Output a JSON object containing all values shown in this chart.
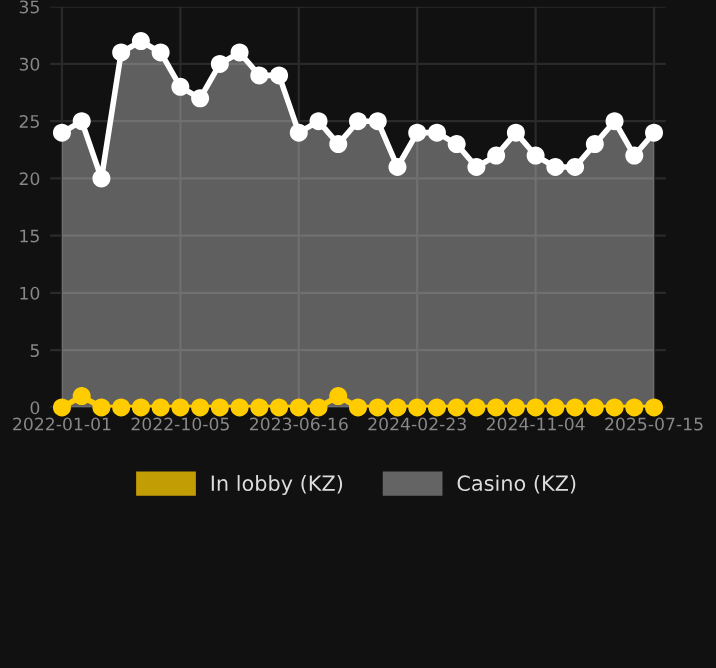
{
  "chart_data": {
    "type": "area",
    "categories": [
      "2022-01-01",
      null,
      null,
      null,
      null,
      null,
      "2022-10-05",
      null,
      null,
      null,
      null,
      null,
      "2023-06-16",
      null,
      null,
      null,
      null,
      null,
      "2024-02-23",
      null,
      null,
      null,
      null,
      null,
      "2024-11-04",
      null,
      null,
      null,
      null,
      null,
      "2025-07-15"
    ],
    "series": [
      {
        "name": "In lobby (KZ)",
        "type": "line",
        "color": "#ffcc00",
        "values": [
          0,
          1,
          0,
          0,
          0,
          0,
          0,
          0,
          0,
          0,
          0,
          0,
          0,
          0,
          1,
          0,
          0,
          0,
          0,
          0,
          0,
          0,
          0,
          0,
          0,
          0,
          0,
          0,
          0,
          0,
          0
        ]
      },
      {
        "name": "Casino (KZ)",
        "color": "#ffffff",
        "values": [
          24,
          25,
          20,
          31,
          32,
          31,
          28,
          27,
          30,
          31,
          29,
          29,
          24,
          25,
          23,
          25,
          25,
          21,
          24,
          24,
          23,
          21,
          22,
          24,
          22,
          21,
          21,
          23,
          25,
          22,
          24
        ]
      }
    ],
    "ylim": [
      0,
      35
    ],
    "yticks": [
      0,
      5,
      10,
      15,
      20,
      25,
      30,
      35
    ],
    "grid": true,
    "legend": "bottom",
    "marker": "circle"
  }
}
